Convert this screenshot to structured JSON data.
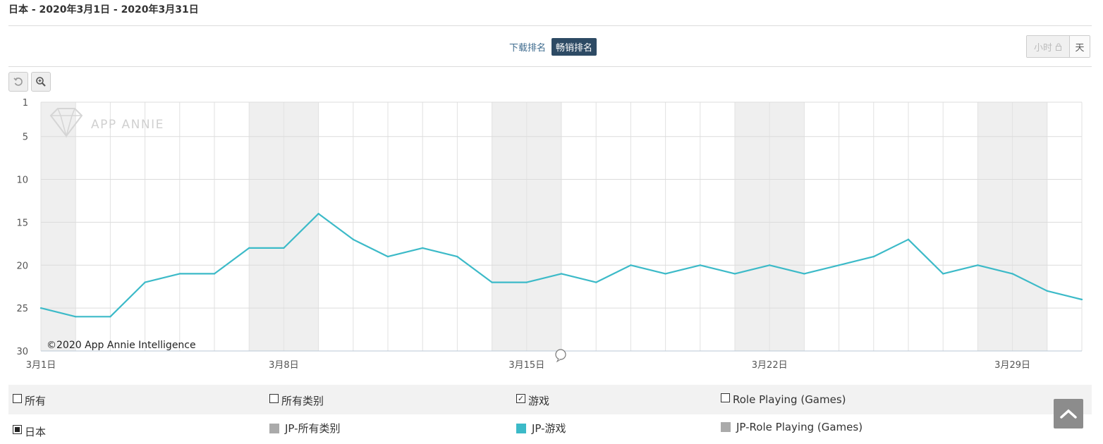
{
  "header": {
    "title": "日本 - 2020年3月1日 - 2020年3月31日"
  },
  "tabs": [
    {
      "label": "下载排名",
      "active": false
    },
    {
      "label": "畅销排名",
      "active": true
    }
  ],
  "granularity": {
    "hour_label": "小时",
    "day_label": "天",
    "selected": "天"
  },
  "toolbar": {
    "reset_icon": "reset-icon",
    "zoom_icon": "zoom-icon"
  },
  "watermark": {
    "brand": "APP ANNIE"
  },
  "copyright": "©2020 App Annie Intelligence",
  "chart_data": {
    "type": "line",
    "y_axis": {
      "reversed": true,
      "range": [
        1,
        30
      ],
      "ticks": [
        "1",
        "5",
        "10",
        "15",
        "20",
        "25",
        "30"
      ]
    },
    "x_ticks": [
      "3月1日",
      "3月8日",
      "3月15日",
      "3月22日",
      "3月29日"
    ],
    "x": [
      "3月1日",
      "3月2日",
      "3月3日",
      "3月4日",
      "3月5日",
      "3月6日",
      "3月7日",
      "3月8日",
      "3月9日",
      "3月10日",
      "3月11日",
      "3月12日",
      "3月13日",
      "3月14日",
      "3月15日",
      "3月16日",
      "3月17日",
      "3月18日",
      "3月19日",
      "3月20日",
      "3月21日",
      "3月22日",
      "3月23日",
      "3月24日",
      "3月25日",
      "3月26日",
      "3月27日",
      "3月28日",
      "3月29日",
      "3月30日",
      "3月31日"
    ],
    "series": [
      {
        "name": "JP-游戏",
        "color": "#3cbac8",
        "values": [
          25,
          26,
          26,
          22,
          21,
          21,
          18,
          18,
          14,
          17,
          19,
          18,
          19,
          22,
          22,
          21,
          22,
          20,
          21,
          20,
          21,
          20,
          21,
          20,
          19,
          17,
          21,
          20,
          21,
          23,
          24
        ]
      }
    ],
    "weekend_shading": [
      [
        0,
        1
      ],
      [
        6,
        8
      ],
      [
        13,
        15
      ],
      [
        20,
        22
      ],
      [
        27,
        29
      ]
    ],
    "grid": true,
    "legend": "bottom"
  },
  "legend": {
    "row1": [
      {
        "label": "所有",
        "checked": false
      },
      {
        "label": "所有类别",
        "checked": false
      },
      {
        "label": "游戏",
        "checked": true,
        "mark": "✓"
      },
      {
        "label": "Role Playing (Games)",
        "checked": false
      }
    ],
    "row2": [
      {
        "label": "日本",
        "type": "checkbox-filled"
      },
      {
        "label": "JP-所有类别",
        "color": "#aaaaaa"
      },
      {
        "label": "JP-游戏",
        "color": "#3cbac8"
      },
      {
        "label": "JP-Role Playing (Games)",
        "color": "#aaaaaa"
      }
    ]
  },
  "scroll_top_icon": "arrow-up-icon"
}
